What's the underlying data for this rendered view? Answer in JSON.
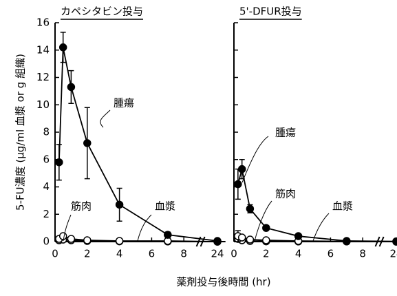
{
  "chart_data": [
    {
      "type": "line",
      "title": "カペシタビン投与",
      "ylabel": "5-FU濃度 (μg/ml 血漿 or g 組織)",
      "xlabel": "薬剤投与後時間 (hr)",
      "x": [
        0.25,
        0.5,
        1,
        2,
        4,
        7,
        24
      ],
      "series": [
        {
          "name": "腫瘍",
          "color": "#000000",
          "marker": "filled",
          "values": [
            5.8,
            14.2,
            11.3,
            7.2,
            2.7,
            0.5,
            0.05
          ],
          "errors": [
            1.3,
            1.1,
            1.2,
            2.6,
            1.2,
            0.2,
            null
          ]
        },
        {
          "name": "筋肉",
          "color": "#000000",
          "marker": "open",
          "values": [
            0.2,
            0.4,
            0.2,
            0.1,
            0.05,
            0.05,
            0
          ]
        },
        {
          "name": "血漿",
          "color": "#000000",
          "marker": "open",
          "values": [
            0.1,
            0.15,
            0.1,
            0.05,
            0.02,
            0.01,
            0
          ]
        }
      ],
      "xlim": [
        0,
        24.5
      ],
      "x_break": [
        9,
        23
      ],
      "xticks": [
        0,
        2,
        4,
        6,
        8,
        24
      ],
      "ylim": [
        0,
        16
      ],
      "yticks": [
        0,
        2,
        4,
        6,
        8,
        10,
        12,
        14,
        16
      ]
    },
    {
      "type": "line",
      "title": "5'-DFUR投与",
      "x": [
        0.25,
        0.5,
        1,
        2,
        4,
        7,
        24
      ],
      "series": [
        {
          "name": "腫瘍",
          "color": "#000000",
          "marker": "filled",
          "values": [
            4.2,
            5.3,
            2.4,
            1.0,
            0.4,
            0.05,
            0.02
          ],
          "errors": [
            1.1,
            0.7,
            0.3,
            null,
            null,
            null,
            null
          ]
        },
        {
          "name": "筋肉",
          "color": "#000000",
          "marker": "open",
          "values": [
            0.4,
            0.3,
            0.15,
            0.1,
            0.05,
            0.02,
            0
          ],
          "errors": [
            0.4,
            null,
            null,
            null,
            null,
            null,
            null
          ]
        },
        {
          "name": "血漿",
          "color": "#000000",
          "marker": "open",
          "values": [
            0.2,
            0.1,
            0.05,
            0.02,
            0.01,
            0.01,
            0
          ]
        }
      ],
      "xlim": [
        0,
        24.5
      ],
      "x_break": [
        9,
        23
      ],
      "xticks": [
        0,
        2,
        4,
        6,
        8,
        24
      ],
      "ylim": [
        0,
        16
      ],
      "yticks": [
        0,
        2,
        4,
        6,
        8,
        10,
        12,
        14,
        16
      ]
    }
  ]
}
